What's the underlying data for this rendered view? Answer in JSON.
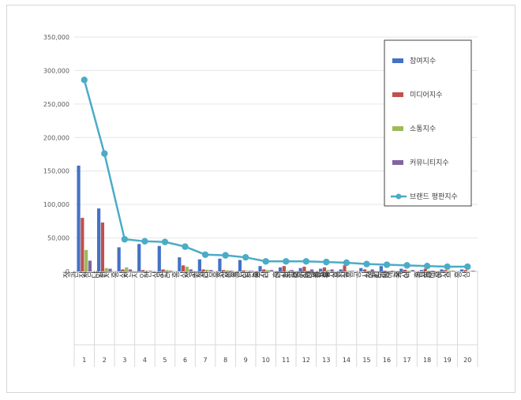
{
  "chart_data": {
    "type": "bar",
    "title": "",
    "xlabel": "",
    "ylabel": "",
    "ylim": [
      0,
      350000
    ],
    "yticks": [
      "0",
      "50,000",
      "100,000",
      "150,000",
      "200,000",
      "250,000",
      "300,000",
      "350,000"
    ],
    "grid": true,
    "legend_position": "right",
    "categories": [
      "정관장",
      "참다한",
      "양지홍삼",
      "천지인",
      "한삼인",
      "고려홍삼",
      "정원삼",
      "고철남홍삼",
      "조선홍삼",
      "종근당 홍삼",
      "한뿌리 홍삼",
      "더작 홍삼",
      "함소아 홍삼",
      "고려인삼유통 홍삼",
      "대한홍삼진흥공사",
      "천지양",
      "애터미 홍삼",
      "천호엔케어 홍삼",
      "광동 홍삼",
      "구베이스 홍삼"
    ],
    "ranks": [
      "1",
      "2",
      "3",
      "4",
      "5",
      "6",
      "7",
      "8",
      "9",
      "10",
      "11",
      "12",
      "13",
      "14",
      "15",
      "16",
      "17",
      "18",
      "19",
      "20"
    ],
    "series": [
      {
        "name": "참여지수",
        "type": "bar",
        "color": "#4472c4",
        "values": [
          158000,
          94000,
          36000,
          41000,
          38000,
          21000,
          18000,
          19000,
          17000,
          8000,
          6000,
          5000,
          4000,
          3000,
          5000,
          8000,
          4000,
          2000,
          3000,
          3000
        ]
      },
      {
        "name": "미디어지수",
        "type": "bar",
        "color": "#c0504d",
        "values": [
          80000,
          73000,
          3000,
          2000,
          3000,
          9000,
          3000,
          2000,
          1500,
          3000,
          8000,
          7000,
          6000,
          9000,
          3000,
          1000,
          2500,
          4000,
          2000,
          2000
        ]
      },
      {
        "name": "소통지수",
        "type": "bar",
        "color": "#9bbb59",
        "values": [
          32000,
          5000,
          6000,
          1000,
          2000,
          7000,
          2500,
          1500,
          1000,
          2000,
          1000,
          1000,
          2000,
          1000,
          1000,
          500,
          1000,
          1000,
          1000,
          500
        ]
      },
      {
        "name": "커뮤니티지수",
        "type": "bar",
        "color": "#8064a2",
        "values": [
          16000,
          4000,
          3000,
          1000,
          1000,
          3000,
          2000,
          1000,
          1000,
          2000,
          2000,
          3000,
          3000,
          1000,
          3000,
          1000,
          2000,
          1000,
          1000,
          1000
        ]
      },
      {
        "name": "브랜드 평판지수",
        "type": "line",
        "color": "#4bacc6",
        "values": [
          286000,
          176000,
          48000,
          45000,
          44000,
          37000,
          25000,
          24000,
          21000,
          15000,
          15000,
          15000,
          14000,
          13000,
          11000,
          10000,
          9000,
          8000,
          7000,
          7000
        ]
      }
    ]
  }
}
